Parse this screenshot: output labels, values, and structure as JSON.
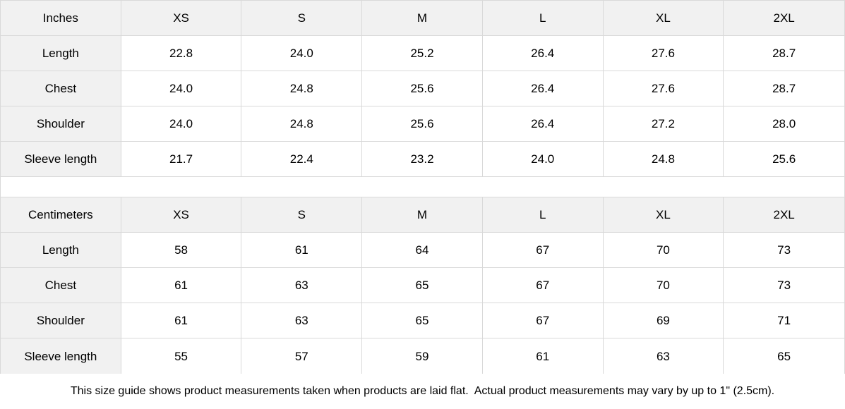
{
  "colors": {
    "header_bg": "#f1f1f1",
    "border": "#d9d9d9",
    "text": "#000000",
    "background": "#ffffff"
  },
  "inches_table": {
    "header": [
      "Inches",
      "XS",
      "S",
      "M",
      "L",
      "XL",
      "2XL"
    ],
    "rows": [
      {
        "label": "Length",
        "values": [
          "22.8",
          "24.0",
          "25.2",
          "26.4",
          "27.6",
          "28.7"
        ]
      },
      {
        "label": "Chest",
        "values": [
          "24.0",
          "24.8",
          "25.6",
          "26.4",
          "27.6",
          "28.7"
        ]
      },
      {
        "label": "Shoulder",
        "values": [
          "24.0",
          "24.8",
          "25.6",
          "26.4",
          "27.2",
          "28.0"
        ]
      },
      {
        "label": "Sleeve length",
        "values": [
          "21.7",
          "22.4",
          "23.2",
          "24.0",
          "24.8",
          "25.6"
        ]
      }
    ]
  },
  "cm_table": {
    "header": [
      "Centimeters",
      "XS",
      "S",
      "M",
      "L",
      "XL",
      "2XL"
    ],
    "rows": [
      {
        "label": "Length",
        "values": [
          "58",
          "61",
          "64",
          "67",
          "70",
          "73"
        ]
      },
      {
        "label": "Chest",
        "values": [
          "61",
          "63",
          "65",
          "67",
          "70",
          "73"
        ]
      },
      {
        "label": "Shoulder",
        "values": [
          "61",
          "63",
          "65",
          "67",
          "69",
          "71"
        ]
      },
      {
        "label": "Sleeve length",
        "values": [
          "55",
          "57",
          "59",
          "61",
          "63",
          "65"
        ]
      }
    ]
  },
  "note": "This size guide shows product measurements taken when products are laid flat.  Actual product measurements may vary by up to 1\" (2.5cm)."
}
